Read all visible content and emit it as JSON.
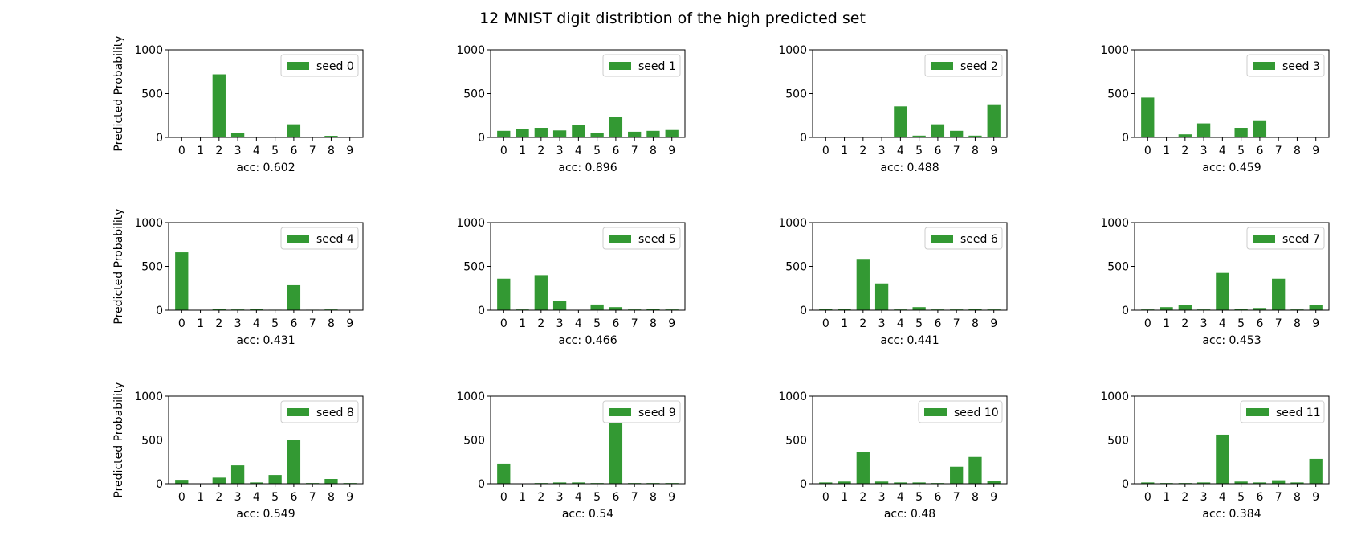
{
  "figure": {
    "title": "12 MNIST digit distribtion of the high predicted set",
    "bar_color": "#339933"
  },
  "chart_data": [
    {
      "type": "bar",
      "title": "",
      "legend": "seed 0",
      "legend_position": "upper-right",
      "categories": [
        "0",
        "1",
        "2",
        "3",
        "4",
        "5",
        "6",
        "7",
        "8",
        "9"
      ],
      "values": [
        5,
        3,
        720,
        55,
        4,
        5,
        150,
        5,
        18,
        6
      ],
      "xlabel": "acc: 0.602",
      "ylabel": "Predicted Probability",
      "ylim": [
        0,
        1000
      ],
      "yticks": [
        "0",
        "500",
        "1000"
      ],
      "grid": false
    },
    {
      "type": "bar",
      "title": "",
      "legend": "seed 1",
      "legend_position": "upper-right",
      "categories": [
        "0",
        "1",
        "2",
        "3",
        "4",
        "5",
        "6",
        "7",
        "8",
        "9"
      ],
      "values": [
        75,
        95,
        110,
        80,
        140,
        50,
        235,
        65,
        75,
        85
      ],
      "xlabel": "acc: 0.896",
      "ylabel": "",
      "ylim": [
        0,
        1000
      ],
      "yticks": [
        "0",
        "500",
        "1000"
      ],
      "grid": false
    },
    {
      "type": "bar",
      "title": "",
      "legend": "seed 2",
      "legend_position": "upper-right",
      "categories": [
        "0",
        "1",
        "2",
        "3",
        "4",
        "5",
        "6",
        "7",
        "8",
        "9"
      ],
      "values": [
        5,
        3,
        3,
        3,
        355,
        20,
        150,
        75,
        20,
        370
      ],
      "xlabel": "acc: 0.488",
      "ylabel": "",
      "ylim": [
        0,
        1000
      ],
      "yticks": [
        "0",
        "500",
        "1000"
      ],
      "grid": false
    },
    {
      "type": "bar",
      "title": "",
      "legend": "seed 3",
      "legend_position": "upper-right",
      "categories": [
        "0",
        "1",
        "2",
        "3",
        "4",
        "5",
        "6",
        "7",
        "8",
        "9"
      ],
      "values": [
        455,
        5,
        35,
        160,
        5,
        110,
        195,
        8,
        5,
        5
      ],
      "xlabel": "acc: 0.459",
      "ylabel": "",
      "ylim": [
        0,
        1000
      ],
      "yticks": [
        "0",
        "500",
        "1000"
      ],
      "grid": false
    },
    {
      "type": "bar",
      "title": "",
      "legend": "seed 4",
      "legend_position": "upper-right",
      "categories": [
        "0",
        "1",
        "2",
        "3",
        "4",
        "5",
        "6",
        "7",
        "8",
        "9"
      ],
      "values": [
        660,
        2,
        15,
        8,
        15,
        5,
        285,
        5,
        8,
        3
      ],
      "xlabel": "acc: 0.431",
      "ylabel": "Predicted Probability",
      "ylim": [
        0,
        1000
      ],
      "yticks": [
        "0",
        "500",
        "1000"
      ],
      "grid": false
    },
    {
      "type": "bar",
      "title": "",
      "legend": "seed 5",
      "legend_position": "upper-right",
      "categories": [
        "0",
        "1",
        "2",
        "3",
        "4",
        "5",
        "6",
        "7",
        "8",
        "9"
      ],
      "values": [
        360,
        8,
        400,
        110,
        3,
        65,
        35,
        8,
        15,
        8
      ],
      "xlabel": "acc: 0.466",
      "ylabel": "",
      "ylim": [
        0,
        1000
      ],
      "yticks": [
        "0",
        "500",
        "1000"
      ],
      "grid": false
    },
    {
      "type": "bar",
      "title": "",
      "legend": "seed 6",
      "legend_position": "upper-right",
      "categories": [
        "0",
        "1",
        "2",
        "3",
        "4",
        "5",
        "6",
        "7",
        "8",
        "9"
      ],
      "values": [
        15,
        15,
        585,
        305,
        8,
        35,
        8,
        8,
        15,
        8
      ],
      "xlabel": "acc: 0.441",
      "ylabel": "",
      "ylim": [
        0,
        1000
      ],
      "yticks": [
        "0",
        "500",
        "1000"
      ],
      "grid": false
    },
    {
      "type": "bar",
      "title": "",
      "legend": "seed 7",
      "legend_position": "upper-right",
      "categories": [
        "0",
        "1",
        "2",
        "3",
        "4",
        "5",
        "6",
        "7",
        "8",
        "9"
      ],
      "values": [
        8,
        35,
        60,
        8,
        425,
        10,
        25,
        360,
        8,
        55
      ],
      "xlabel": "acc: 0.453",
      "ylabel": "",
      "ylim": [
        0,
        1000
      ],
      "yticks": [
        "0",
        "500",
        "1000"
      ],
      "grid": false
    },
    {
      "type": "bar",
      "title": "",
      "legend": "seed 8",
      "legend_position": "upper-right",
      "categories": [
        "0",
        "1",
        "2",
        "3",
        "4",
        "5",
        "6",
        "7",
        "8",
        "9"
      ],
      "values": [
        45,
        2,
        70,
        210,
        15,
        100,
        500,
        8,
        55,
        8
      ],
      "xlabel": "acc: 0.549",
      "ylabel": "Predicted Probability",
      "ylim": [
        0,
        1000
      ],
      "yticks": [
        "0",
        "500",
        "1000"
      ],
      "grid": false
    },
    {
      "type": "bar",
      "title": "",
      "legend": "seed 9",
      "legend_position": "upper-right",
      "categories": [
        "0",
        "1",
        "2",
        "3",
        "4",
        "5",
        "6",
        "7",
        "8",
        "9"
      ],
      "values": [
        230,
        2,
        8,
        15,
        15,
        8,
        700,
        8,
        8,
        8
      ],
      "xlabel": "acc: 0.54",
      "ylabel": "",
      "ylim": [
        0,
        1000
      ],
      "yticks": [
        "0",
        "500",
        "1000"
      ],
      "grid": false
    },
    {
      "type": "bar",
      "title": "",
      "legend": "seed 10",
      "legend_position": "upper-right",
      "categories": [
        "0",
        "1",
        "2",
        "3",
        "4",
        "5",
        "6",
        "7",
        "8",
        "9"
      ],
      "values": [
        15,
        25,
        360,
        25,
        15,
        15,
        8,
        195,
        305,
        35
      ],
      "xlabel": "acc: 0.48",
      "ylabel": "",
      "ylim": [
        0,
        1000
      ],
      "yticks": [
        "0",
        "500",
        "1000"
      ],
      "grid": false
    },
    {
      "type": "bar",
      "title": "",
      "legend": "seed 11",
      "legend_position": "upper-right",
      "categories": [
        "0",
        "1",
        "2",
        "3",
        "4",
        "5",
        "6",
        "7",
        "8",
        "9"
      ],
      "values": [
        15,
        8,
        8,
        15,
        560,
        25,
        15,
        40,
        15,
        285
      ],
      "xlabel": "acc: 0.384",
      "ylabel": "",
      "ylim": [
        0,
        1000
      ],
      "yticks": [
        "0",
        "500",
        "1000"
      ],
      "grid": false
    }
  ]
}
